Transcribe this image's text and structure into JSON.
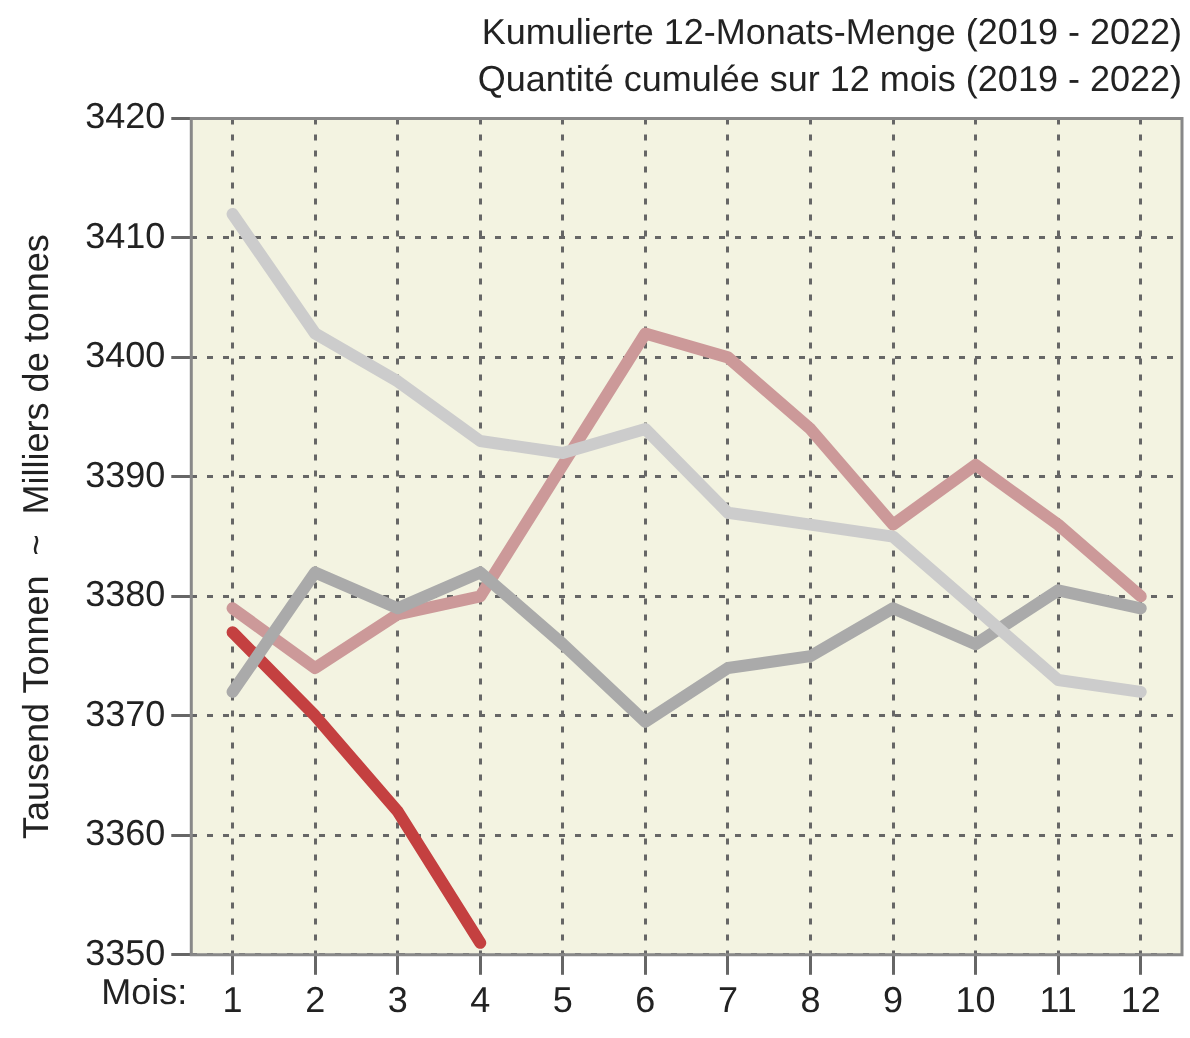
{
  "chart_data": {
    "type": "line",
    "title": "Kumulierte 12-Monats-Menge (2019 - 2022)",
    "subtitle": "Quantité cumulée sur 12 mois (2019 - 2022)",
    "xlabel": "Mois:",
    "ylabel": "Tausend Tonnen  ~  Milliers de tonnes",
    "x": [
      1,
      2,
      3,
      4,
      5,
      6,
      7,
      8,
      9,
      10,
      11,
      12
    ],
    "series": [
      {
        "color": "#cccccc",
        "values": [
          3412,
          3402,
          3398,
          3393,
          3392,
          3394,
          3387,
          3386,
          3385,
          3379,
          3373,
          3372
        ]
      },
      {
        "color": "#aaaaaa",
        "values": [
          3372,
          3382,
          3379,
          3382,
          3376,
          3369.5,
          3374,
          3375,
          3379,
          3376,
          3380.5,
          3379
        ]
      },
      {
        "color": "#cc9999",
        "values": [
          3379,
          3374,
          3378.5,
          3380,
          3391,
          3402,
          3400,
          3394,
          3386,
          3391,
          3386,
          3380
        ]
      },
      {
        "color": "#c44040",
        "values": [
          3377,
          3370,
          3362,
          3351,
          null,
          null,
          null,
          null,
          null,
          null,
          null,
          null
        ]
      }
    ],
    "xlim": [
      0.5,
      12.5
    ],
    "xticks": [
      1,
      2,
      3,
      4,
      5,
      6,
      7,
      8,
      9,
      10,
      11,
      12
    ],
    "ylim": [
      3350,
      3420
    ],
    "yticks": [
      3350,
      3360,
      3370,
      3380,
      3390,
      3400,
      3410,
      3420
    ],
    "grid": true,
    "legend": false,
    "marker": "none",
    "line_style": "solid"
  }
}
